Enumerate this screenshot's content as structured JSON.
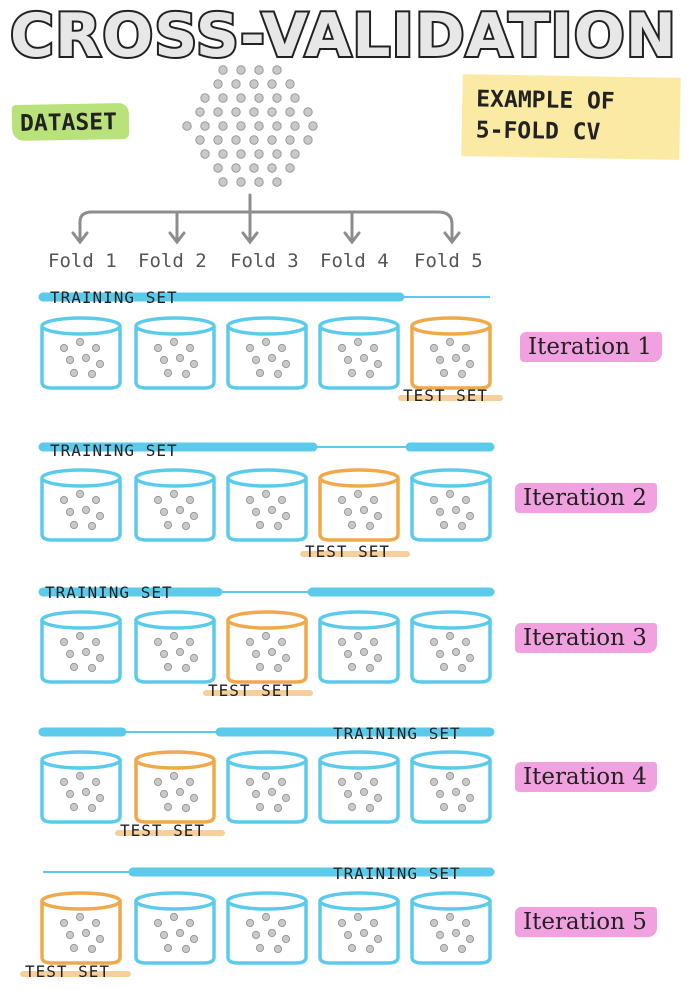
{
  "title": "CROSS-VALIDATION",
  "dataset_label": "DATASET",
  "example_label_line1": "EXAMPLE OF",
  "example_label_line2": "5-FOLD CV",
  "folds": [
    "Fold 1",
    "Fold 2",
    "Fold 3",
    "Fold 4",
    "Fold 5"
  ],
  "training_label": "TRAINING SET",
  "test_label": "TEST SET",
  "iterations": [
    {
      "label": "Iteration 1",
      "test_fold": 5
    },
    {
      "label": "Iteration 2",
      "test_fold": 4
    },
    {
      "label": "Iteration 3",
      "test_fold": 3
    },
    {
      "label": "Iteration 4",
      "test_fold": 2
    },
    {
      "label": "Iteration 5",
      "test_fold": 1
    }
  ],
  "colors": {
    "training": "#5ccbeb",
    "test": "#f0a94a",
    "dataset_tag": "#b9e27a",
    "example_tag": "#fbeaa3",
    "iteration_tag": "#f1a1df",
    "dots": "#c9c9c9"
  }
}
